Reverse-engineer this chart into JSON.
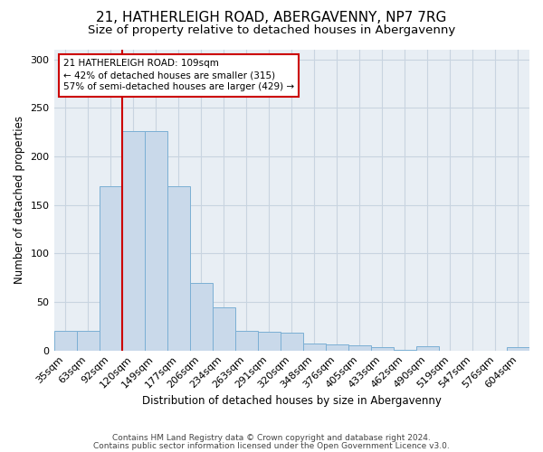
{
  "title": "21, HATHERLEIGH ROAD, ABERGAVENNY, NP7 7RG",
  "subtitle": "Size of property relative to detached houses in Abergavenny",
  "xlabel": "Distribution of detached houses by size in Abergavenny",
  "ylabel": "Number of detached properties",
  "categories": [
    "35sqm",
    "63sqm",
    "92sqm",
    "120sqm",
    "149sqm",
    "177sqm",
    "206sqm",
    "234sqm",
    "263sqm",
    "291sqm",
    "320sqm",
    "348sqm",
    "376sqm",
    "405sqm",
    "433sqm",
    "462sqm",
    "490sqm",
    "519sqm",
    "547sqm",
    "576sqm",
    "604sqm"
  ],
  "values": [
    20,
    20,
    169,
    226,
    226,
    169,
    70,
    44,
    20,
    19,
    18,
    7,
    6,
    5,
    3,
    1,
    4,
    0,
    0,
    0,
    3
  ],
  "bar_color": "#c9d9ea",
  "bar_edge_color": "#7bafd4",
  "vline_x_index": 3,
  "marker_label_line1": "21 HATHERLEIGH ROAD: 109sqm",
  "marker_label_line2": "← 42% of detached houses are smaller (315)",
  "marker_label_line3": "57% of semi-detached houses are larger (429) →",
  "vline_color": "#cc0000",
  "ylim": [
    0,
    310
  ],
  "yticks": [
    0,
    50,
    100,
    150,
    200,
    250,
    300
  ],
  "grid_color": "#c8d4e0",
  "background_color": "#e8eef4",
  "footer_line1": "Contains HM Land Registry data © Crown copyright and database right 2024.",
  "footer_line2": "Contains public sector information licensed under the Open Government Licence v3.0.",
  "title_fontsize": 11,
  "subtitle_fontsize": 9.5,
  "xlabel_fontsize": 8.5,
  "ylabel_fontsize": 8.5,
  "tick_fontsize": 8,
  "footer_fontsize": 6.5
}
